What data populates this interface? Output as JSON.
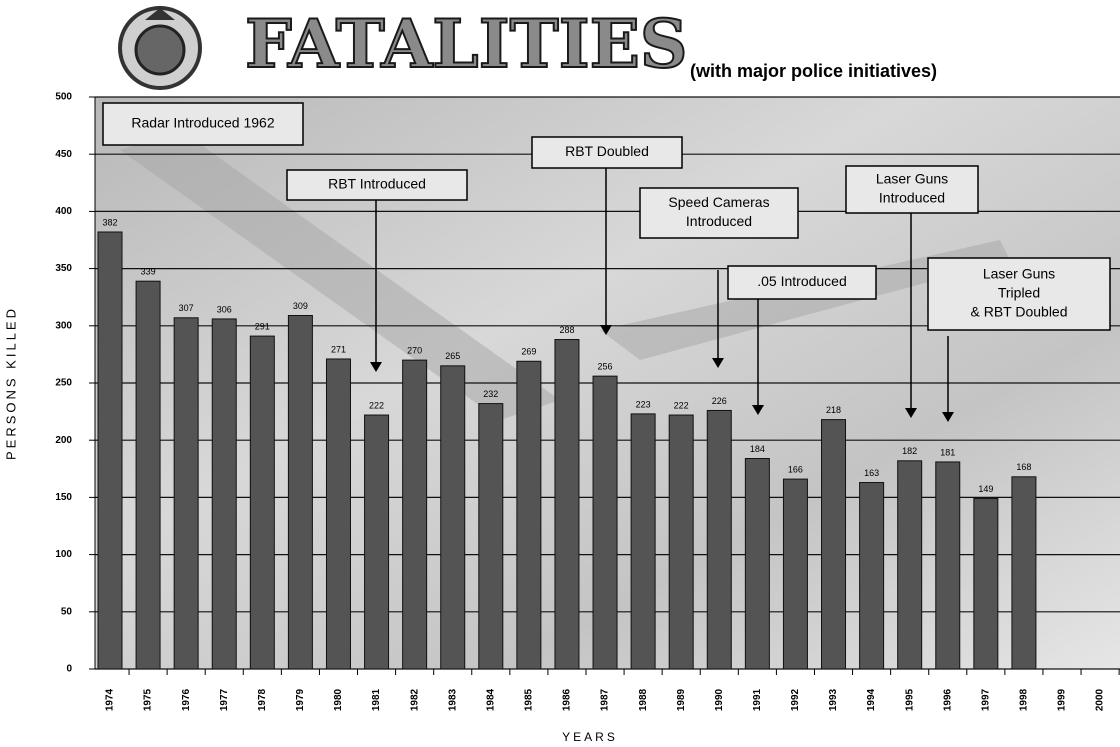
{
  "chart_data": {
    "type": "bar",
    "title": "FATALITIES",
    "subtitle": "(with major police initiatives)",
    "y_label": "PERSONS KILLED",
    "x_label": "YEARS",
    "categories": [
      "1974",
      "1975",
      "1976",
      "1977",
      "1978",
      "1979",
      "1980",
      "1981",
      "1982",
      "1983",
      "1984",
      "1985",
      "1986",
      "1987",
      "1988",
      "1989",
      "1990",
      "1991",
      "1992",
      "1993",
      "1994",
      "1995",
      "1996",
      "1997",
      "1998",
      "1999",
      "2000"
    ],
    "values": [
      382,
      339,
      307,
      306,
      291,
      309,
      271,
      222,
      270,
      265,
      232,
      269,
      288,
      256,
      223,
      222,
      226,
      184,
      166,
      218,
      163,
      182,
      181,
      149,
      168,
      null,
      null
    ],
    "color": "#545454",
    "ylim": [
      0,
      500
    ],
    "yticks": [
      0,
      50,
      100,
      150,
      200,
      250,
      300,
      350,
      400,
      450,
      500
    ],
    "grid": true,
    "annotations": [
      {
        "lines": [
          "Radar Introduced 1962"
        ]
      },
      {
        "lines": [
          "RBT Introduced"
        ]
      },
      {
        "lines": [
          "RBT Doubled"
        ]
      },
      {
        "lines": [
          "Speed Cameras",
          "Introduced"
        ]
      },
      {
        "lines": [
          ".05 Introduced"
        ]
      },
      {
        "lines": [
          "Laser Guns",
          "Introduced"
        ]
      },
      {
        "lines": [
          "Laser Guns",
          "Tripled",
          "& RBT Doubled"
        ]
      }
    ]
  }
}
